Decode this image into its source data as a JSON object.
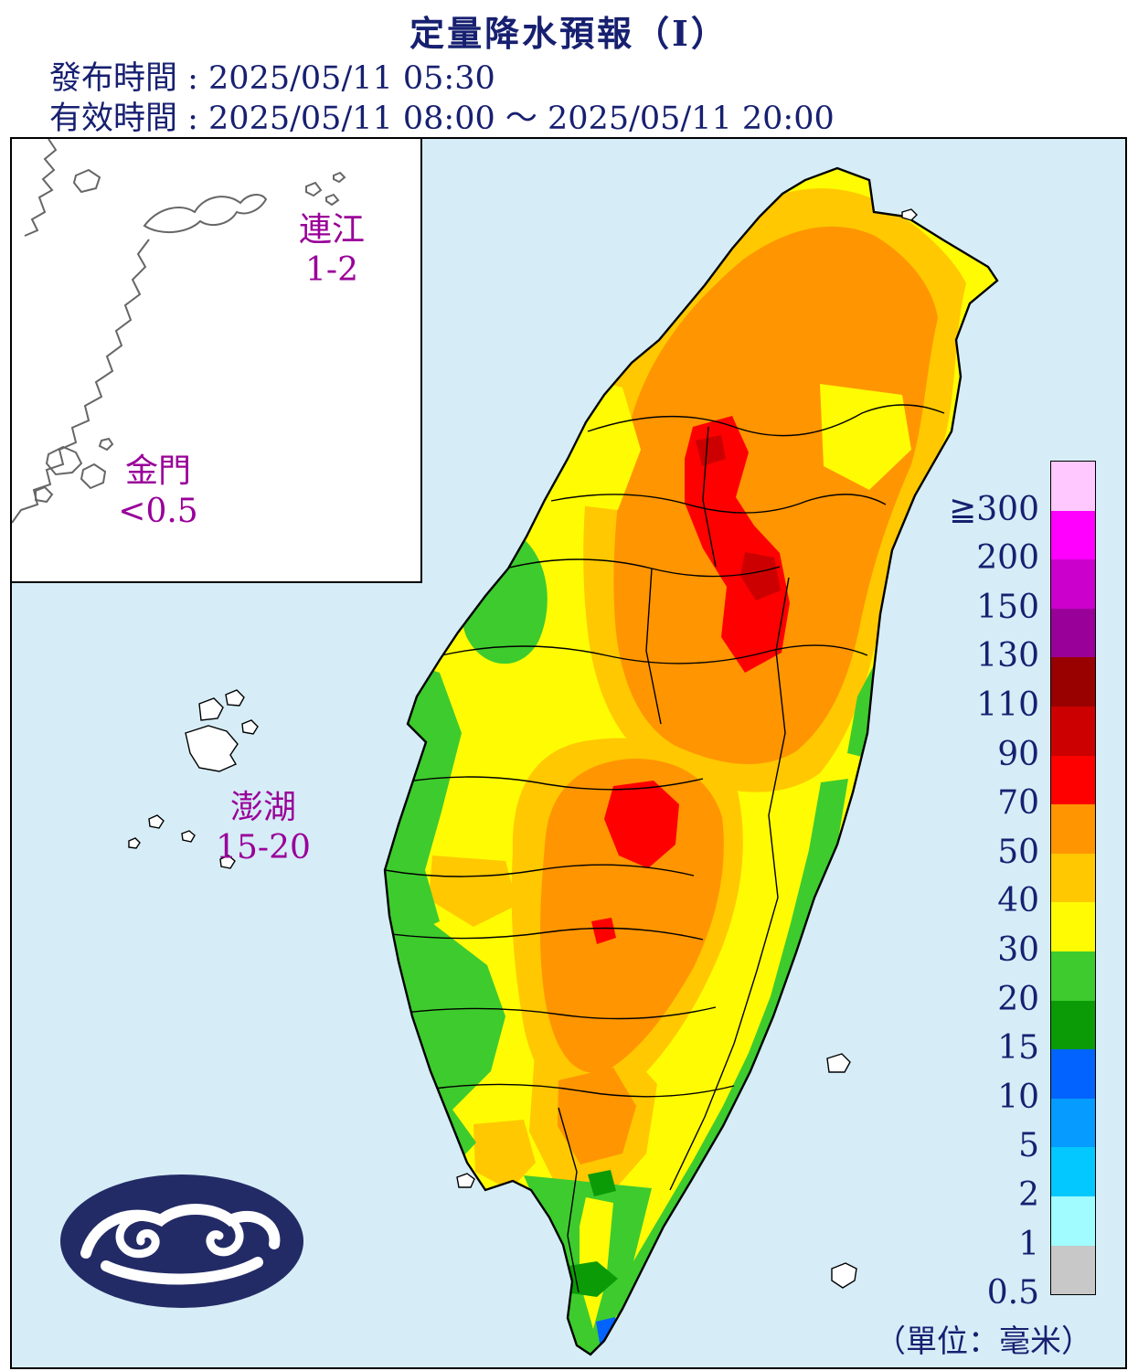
{
  "header": {
    "title": "定量降水預報（Ⅰ）",
    "issue_line": "發布時間 : 2025/05/11 05:30",
    "valid_line": "有效時間 : 2025/05/11 08:00 ～ 2025/05/11 20:00"
  },
  "inset": {
    "lienchiang": {
      "name": "連江",
      "value": "1-2"
    },
    "kinmen": {
      "name": "金門",
      "value": "<0.5"
    }
  },
  "islands": {
    "penghu": {
      "name": "澎湖",
      "value": "15-20"
    }
  },
  "legend": {
    "unit_label": "（單位：毫米）",
    "entries": [
      {
        "label": "≧300",
        "color": "#ffc8ff"
      },
      {
        "label": "200",
        "color": "#ff00ff"
      },
      {
        "label": "150",
        "color": "#cc00cc"
      },
      {
        "label": "130",
        "color": "#990099"
      },
      {
        "label": "110",
        "color": "#990000"
      },
      {
        "label": "90",
        "color": "#cc0000"
      },
      {
        "label": "70",
        "color": "#ff0000"
      },
      {
        "label": "50",
        "color": "#ff9500"
      },
      {
        "label": "40",
        "color": "#ffc800"
      },
      {
        "label": "30",
        "color": "#fffb03"
      },
      {
        "label": "20",
        "color": "#3ecb2e"
      },
      {
        "label": "15",
        "color": "#0a9b07"
      },
      {
        "label": "10",
        "color": "#0363ff"
      },
      {
        "label": "5",
        "color": "#059bff"
      },
      {
        "label": "2",
        "color": "#03c8ff"
      },
      {
        "label": "1",
        "color": "#a0fcff"
      },
      {
        "label": "0.5",
        "color": "#c8c8c8"
      }
    ]
  },
  "palette": {
    "c300": "#ffc8ff",
    "c200": "#ff00ff",
    "c150": "#cc00cc",
    "c130": "#990099",
    "c110": "#990000",
    "c90": "#cc0000",
    "c70": "#ff0000",
    "c50": "#ff9500",
    "c40": "#ffc800",
    "c30": "#fffb03",
    "c20": "#3ecb2e",
    "c15": "#0a9b07",
    "c10": "#0363ff",
    "c5": "#059bff",
    "c2": "#03c8ff",
    "c1": "#a0fcff",
    "c05": "#c8c8c8"
  },
  "colors": {
    "ocean": "#d6edf7",
    "text": "#172070",
    "county_label": "#990099",
    "logo": "#232b66"
  }
}
